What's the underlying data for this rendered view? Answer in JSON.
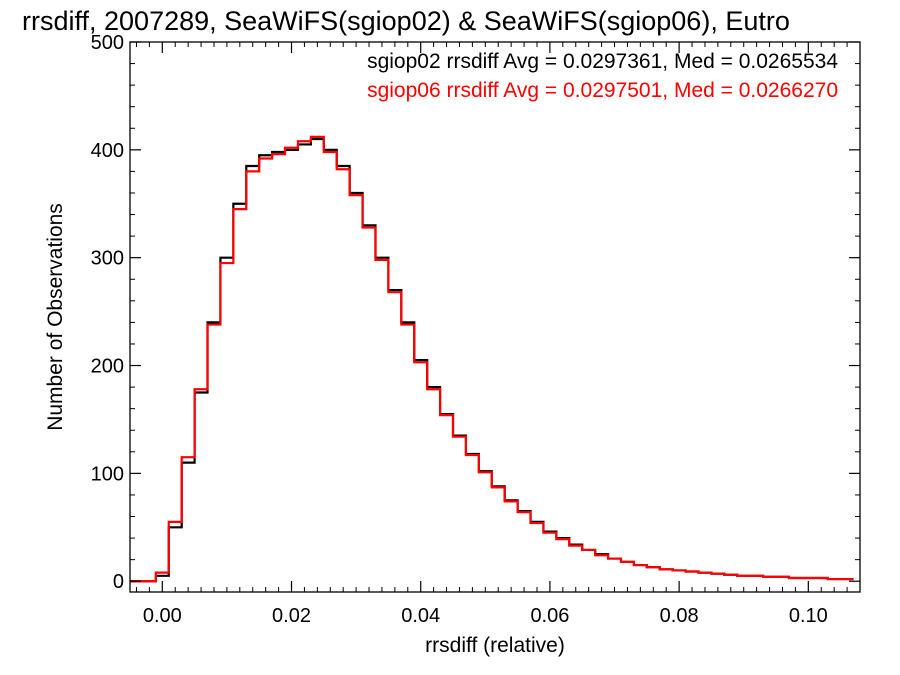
{
  "chart_data": {
    "type": "line",
    "title": "rrsdiff, 2007289, SeaWiFS(sgiop02) & SeaWiFS(sgiop06), Eutro",
    "xlabel": "rrsdiff (relative)",
    "ylabel": "Number of Observations",
    "xlim": [
      -0.005,
      0.108
    ],
    "ylim": [
      -10,
      500
    ],
    "xticks": [
      0.0,
      0.02,
      0.04,
      0.06,
      0.08,
      0.1
    ],
    "xtick_labels": [
      "0.00",
      "0.02",
      "0.04",
      "0.06",
      "0.08",
      "0.10"
    ],
    "yticks": [
      0,
      100,
      200,
      300,
      400,
      500
    ],
    "ytick_labels": [
      "0",
      "100",
      "200",
      "300",
      "400",
      "500"
    ],
    "grid": false,
    "legend_position": "top-right",
    "x": [
      -0.004,
      -0.002,
      0.0,
      0.002,
      0.004,
      0.006,
      0.008,
      0.01,
      0.012,
      0.014,
      0.016,
      0.018,
      0.02,
      0.022,
      0.024,
      0.026,
      0.028,
      0.03,
      0.032,
      0.034,
      0.036,
      0.038,
      0.04,
      0.042,
      0.044,
      0.046,
      0.048,
      0.05,
      0.052,
      0.054,
      0.056,
      0.058,
      0.06,
      0.062,
      0.064,
      0.066,
      0.068,
      0.07,
      0.072,
      0.074,
      0.076,
      0.078,
      0.08,
      0.082,
      0.084,
      0.086,
      0.088,
      0.09,
      0.092,
      0.094,
      0.096,
      0.098,
      0.1,
      0.102,
      0.104,
      0.106
    ],
    "series": [
      {
        "name": "sgiop02",
        "color": "#000000",
        "values": [
          0,
          0,
          5,
          50,
          110,
          175,
          240,
          300,
          350,
          385,
          395,
          398,
          400,
          405,
          410,
          400,
          385,
          360,
          330,
          300,
          270,
          240,
          205,
          180,
          155,
          135,
          118,
          102,
          88,
          75,
          65,
          55,
          46,
          40,
          34,
          29,
          25,
          21,
          18,
          15,
          13,
          11,
          10,
          9,
          8,
          7,
          6,
          5,
          5,
          4,
          4,
          3,
          3,
          3,
          2,
          2
        ]
      },
      {
        "name": "sgiop06",
        "color": "#ff0000",
        "values": [
          0,
          0,
          8,
          55,
          115,
          178,
          238,
          295,
          345,
          380,
          392,
          396,
          402,
          408,
          412,
          398,
          382,
          358,
          328,
          298,
          268,
          238,
          203,
          178,
          154,
          134,
          117,
          101,
          87,
          74,
          64,
          54,
          45,
          39,
          33,
          29,
          24,
          21,
          18,
          15,
          13,
          11,
          10,
          9,
          8,
          7,
          6,
          5,
          5,
          4,
          4,
          3,
          3,
          3,
          2,
          2
        ]
      }
    ],
    "annotations": [
      {
        "text": "sgiop02 rrsdiff Avg = 0.0297361, Med = 0.0265534",
        "color": "#000000"
      },
      {
        "text": "sgiop06 rrsdiff Avg = 0.0297501, Med = 0.0266270",
        "color": "#ff0000"
      }
    ]
  }
}
